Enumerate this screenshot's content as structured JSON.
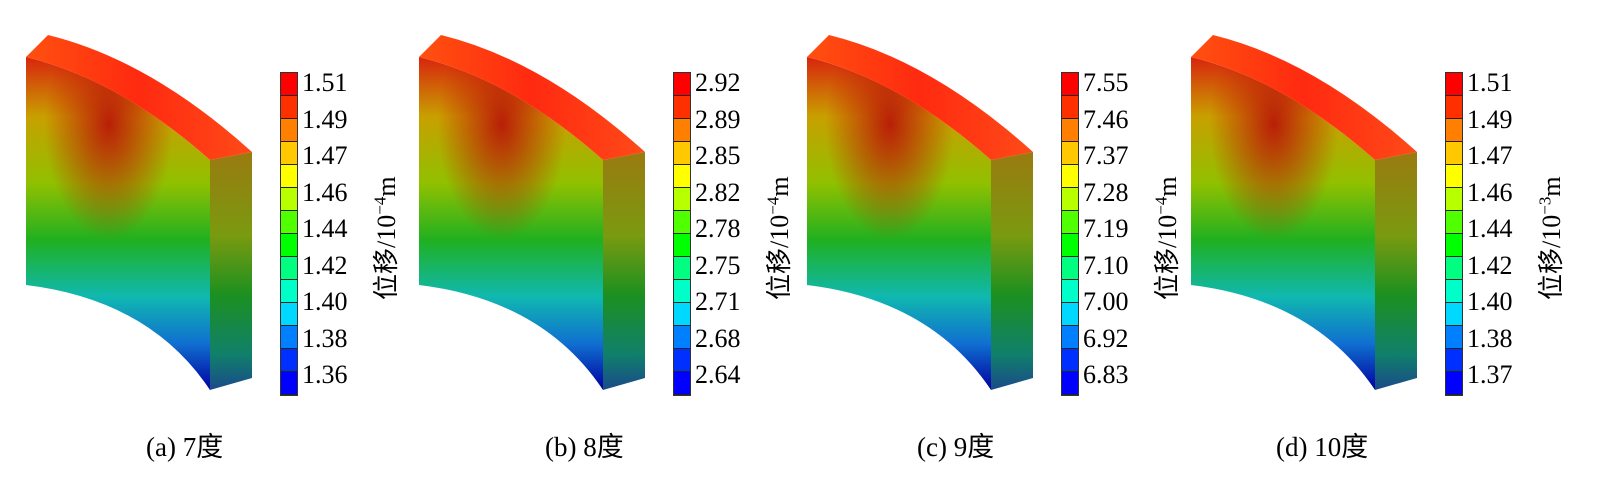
{
  "colors": {
    "legend": [
      "#0000ff",
      "#0030ff",
      "#0080ff",
      "#00d8ff",
      "#00ffc8",
      "#00ff80",
      "#00ff00",
      "#50ff00",
      "#b8ff00",
      "#ffff00",
      "#ffc800",
      "#ff8000",
      "#ff3000",
      "#ff0000"
    ]
  },
  "panels": [
    {
      "caption": "(a)  7度",
      "ticks": [
        "1.51",
        "1.49",
        "1.47",
        "1.46",
        "1.44",
        "1.42",
        "1.40",
        "1.38",
        "1.36"
      ],
      "unit_prefix": "位移/10",
      "unit_exp": "−4",
      "unit_suffix": "m"
    },
    {
      "caption": "(b)  8度",
      "ticks": [
        "2.92",
        "2.89",
        "2.85",
        "2.82",
        "2.78",
        "2.75",
        "2.71",
        "2.68",
        "2.64"
      ],
      "unit_prefix": "位移/10",
      "unit_exp": "−4",
      "unit_suffix": "m"
    },
    {
      "caption": "(c) 9度",
      "ticks": [
        "7.55",
        "7.46",
        "7.37",
        "7.28",
        "7.19",
        "7.10",
        "7.00",
        "6.92",
        "6.83"
      ],
      "unit_prefix": "位移/10",
      "unit_exp": "−4",
      "unit_suffix": "m"
    },
    {
      "caption": "(d) 10度",
      "ticks": [
        "1.51",
        "1.49",
        "1.47",
        "1.46",
        "1.44",
        "1.42",
        "1.40",
        "1.38",
        "1.37"
      ],
      "unit_prefix": "位移/10",
      "unit_exp": "−3",
      "unit_suffix": "m"
    }
  ]
}
